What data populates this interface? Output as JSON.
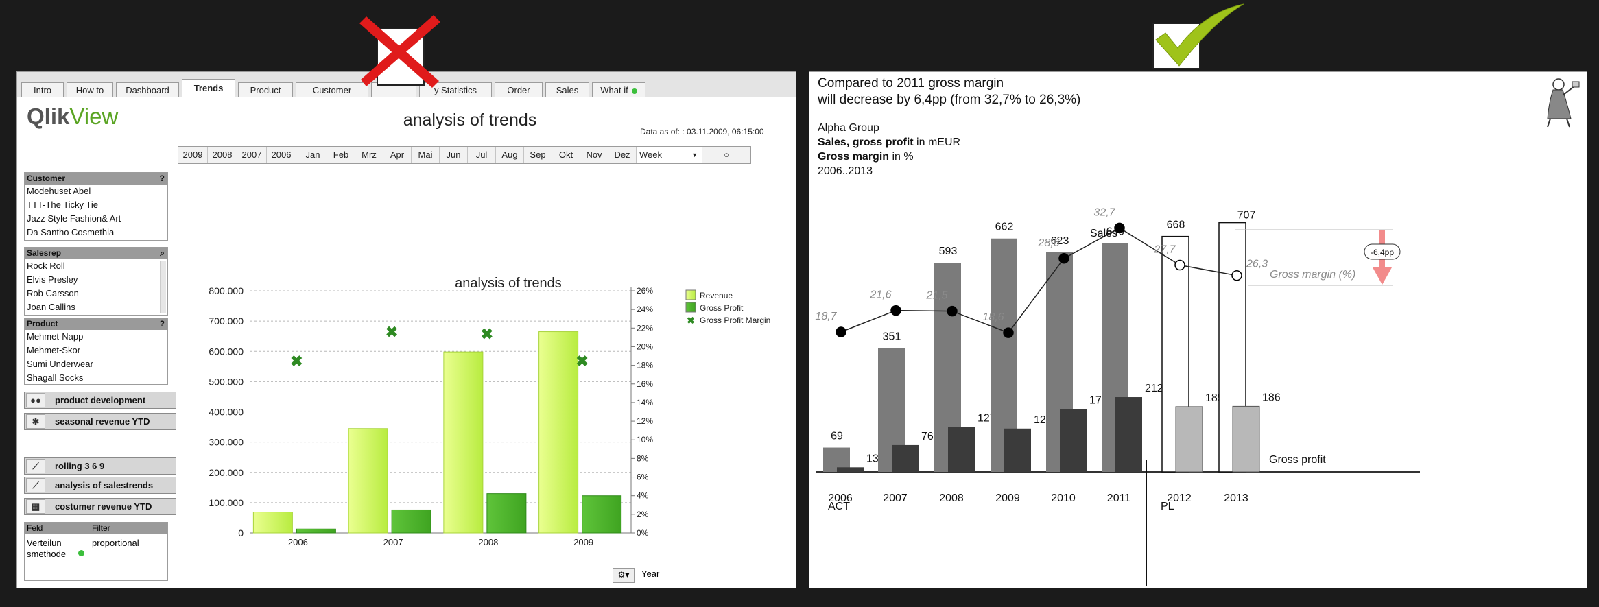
{
  "left_panel": {
    "tabs": [
      "Intro",
      "How to",
      "Dashboard",
      "Trends",
      "Product",
      "Customer",
      "",
      "y Statistics",
      "Order",
      "Sales",
      "What if"
    ],
    "active_tab": "Trends",
    "logo_part1": "Qlik",
    "logo_part2": "View",
    "page_title": "analysis of trends",
    "data_as_of": "Data as of: : 03.11.2009, 06:15:00",
    "filter_years": [
      "2009",
      "2008",
      "2007",
      "2006"
    ],
    "filter_months": [
      "Jan",
      "Feb",
      "Mrz",
      "Apr",
      "Mai",
      "Jun",
      "Jul",
      "Aug",
      "Sep",
      "Okt",
      "Nov",
      "Dez"
    ],
    "filter_week": "Week",
    "listboxes": [
      {
        "title": "Customer",
        "icon": "?",
        "items": [
          "Modehuset Abel",
          "TTT-The Ticky Tie",
          "Jazz Style Fashion& Art",
          "Da Santho Cosmethia"
        ]
      },
      {
        "title": "Salesrep",
        "icon": "search",
        "items": [
          "Rock Roll",
          "Elvis Presley",
          "Rob Carsson",
          "Joan Callins"
        ]
      },
      {
        "title": "Product",
        "icon": "?",
        "items": [
          "Mehmet-Napp",
          "Mehmet-Skor",
          "Sumi Underwear",
          "Shagall Socks"
        ]
      }
    ],
    "sheet_buttons": [
      "product development",
      "seasonal revenue YTD",
      "rolling 3 6 9",
      "analysis of salestrends",
      "costumer revenue YTD"
    ],
    "feld_table": {
      "col1": "Feld",
      "col2": "Filter",
      "row_feld": "Verteilun smethode",
      "row_filter": "proportional"
    },
    "year_label": "Year"
  },
  "chart_data": [
    {
      "type": "bar",
      "title": "analysis of trends",
      "categories": [
        "2006",
        "2007",
        "2008",
        "2009"
      ],
      "series": [
        {
          "name": "Revenue",
          "values": [
            69000,
            345000,
            598000,
            665000
          ],
          "color": "#b8ec40"
        },
        {
          "name": "Gross Profit",
          "values": [
            13000,
            76000,
            130000,
            123000
          ],
          "color": "#3fa421"
        },
        {
          "name": "Gross Profit Margin",
          "values": [
            18.5,
            21.6,
            21.4,
            18.5
          ],
          "color": "#2e8a22",
          "axis": "right"
        }
      ],
      "y_ticks": [
        "0",
        "100.000",
        "200.000",
        "300.000",
        "400.000",
        "500.000",
        "600.000",
        "700.000",
        "800.000"
      ],
      "ylim": [
        0,
        800000
      ],
      "y2_ticks": [
        "0%",
        "2%",
        "4%",
        "6%",
        "8%",
        "10%",
        "12%",
        "14%",
        "16%",
        "18%",
        "20%",
        "22%",
        "24%",
        "26%"
      ],
      "y2lim": [
        0,
        26
      ],
      "xlabel": "Year",
      "legend_position": "top-right",
      "grid": true
    },
    {
      "type": "bar",
      "headline": [
        "Compared to 2011 gross margin",
        "will decrease by 6,4pp (from 32,7% to 26,3%)"
      ],
      "company": "Alpha Group",
      "subtitle_bold1": "Sales, gross profit",
      "subtitle_unit1": " in mEUR",
      "subtitle_bold2": "Gross margin",
      "subtitle_unit2": " in %",
      "period": "2006..2013",
      "categories": [
        "2006",
        "2007",
        "2008",
        "2009",
        "2010",
        "2011",
        "2012",
        "2013"
      ],
      "series": [
        {
          "name": "Sales",
          "values": [
            69,
            351,
            593,
            662,
            623,
            649,
            668,
            707
          ],
          "labels": [
            "69",
            "351",
            "593",
            "662",
            "623",
            "649",
            "668",
            "707"
          ]
        },
        {
          "name": "Gross profit",
          "values": [
            13,
            76,
            127,
            123,
            178,
            212,
            185,
            186
          ],
          "labels": [
            "13",
            "76",
            "127",
            "123",
            "178",
            "212",
            "185",
            "186"
          ]
        },
        {
          "name": "Gross margin (%)",
          "values": [
            18.7,
            21.6,
            21.5,
            18.6,
            28.6,
            32.7,
            27.7,
            26.3
          ],
          "labels": [
            "18,7",
            "21,6",
            "21,5",
            "18,6",
            "28,6",
            "32,7",
            "27,7",
            "26,3"
          ]
        }
      ],
      "group_labels": [
        "ACT",
        "PL"
      ],
      "delta_label": "-6,4pp"
    }
  ]
}
